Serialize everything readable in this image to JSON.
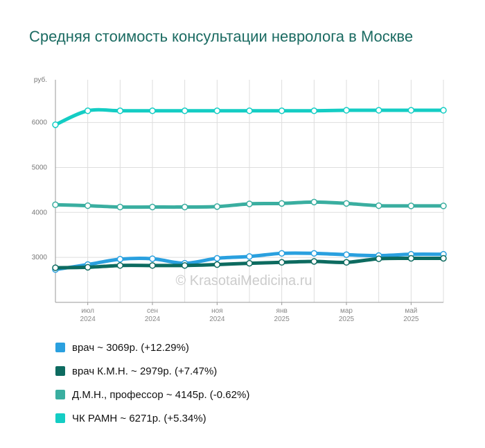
{
  "title": "Средняя стоимость консультации невролога в Москве",
  "watermark": "© KrasotaiMedicina.ru",
  "chart_data": {
    "type": "line",
    "title": "Средняя стоимость консультации невролога в Москве",
    "ylabel": "руб.",
    "ylim": [
      2000,
      6950
    ],
    "yticks": [
      3000,
      4000,
      5000,
      6000
    ],
    "x": [
      "2024-05",
      "2024-06",
      "2024-07",
      "2024-08",
      "2024-09",
      "2024-10",
      "2024-11",
      "2024-12",
      "2025-01",
      "2025-02",
      "2025-03",
      "2025-04",
      "2025-05"
    ],
    "xticks": [
      {
        "x": "2024-06",
        "label": [
          "июл",
          "2024"
        ]
      },
      {
        "x": "2024-08",
        "label": [
          "сен",
          "2024"
        ]
      },
      {
        "x": "2024-10",
        "label": [
          "ноя",
          "2024"
        ]
      },
      {
        "x": "2024-12",
        "label": [
          "янв",
          "2025"
        ]
      },
      {
        "x": "2025-02",
        "label": [
          "мар",
          "2025"
        ]
      },
      {
        "x": "2025-04",
        "label": [
          "май",
          "2025"
        ]
      }
    ],
    "grid": true,
    "legend_position": "bottom",
    "series": [
      {
        "name": "врач",
        "color": "#2aa0df",
        "values": [
          2730,
          2840,
          2960,
          2970,
          2870,
          2980,
          3020,
          3090,
          3090,
          3060,
          3040,
          3069,
          3069
        ]
      },
      {
        "name": "врач К.М.Н.",
        "color": "#0d6b60",
        "values": [
          2770,
          2780,
          2820,
          2820,
          2820,
          2840,
          2870,
          2890,
          2910,
          2890,
          2970,
          2979,
          2979
        ]
      },
      {
        "name": "Д.М.Н., профессор",
        "color": "#3aaea0",
        "values": [
          4170,
          4150,
          4120,
          4120,
          4120,
          4130,
          4190,
          4200,
          4230,
          4200,
          4150,
          4145,
          4145
        ]
      },
      {
        "name": "ЧК РАМН",
        "color": "#14cdc4",
        "values": [
          5950,
          6260,
          6260,
          6260,
          6260,
          6260,
          6260,
          6260,
          6260,
          6271,
          6271,
          6271,
          6271
        ]
      }
    ],
    "legend": [
      {
        "text": "врач ~ 3069р. (+12.29%)",
        "color": "#2aa0df"
      },
      {
        "text": "врач К.М.Н. ~ 2979р. (+7.47%)",
        "color": "#0d6b60"
      },
      {
        "text": "Д.М.Н., профессор ~ 4145р. (-0.62%)",
        "color": "#3aaea0"
      },
      {
        "text": "ЧК РАМН ~ 6271р. (+5.34%)",
        "color": "#14cdc4"
      }
    ]
  }
}
